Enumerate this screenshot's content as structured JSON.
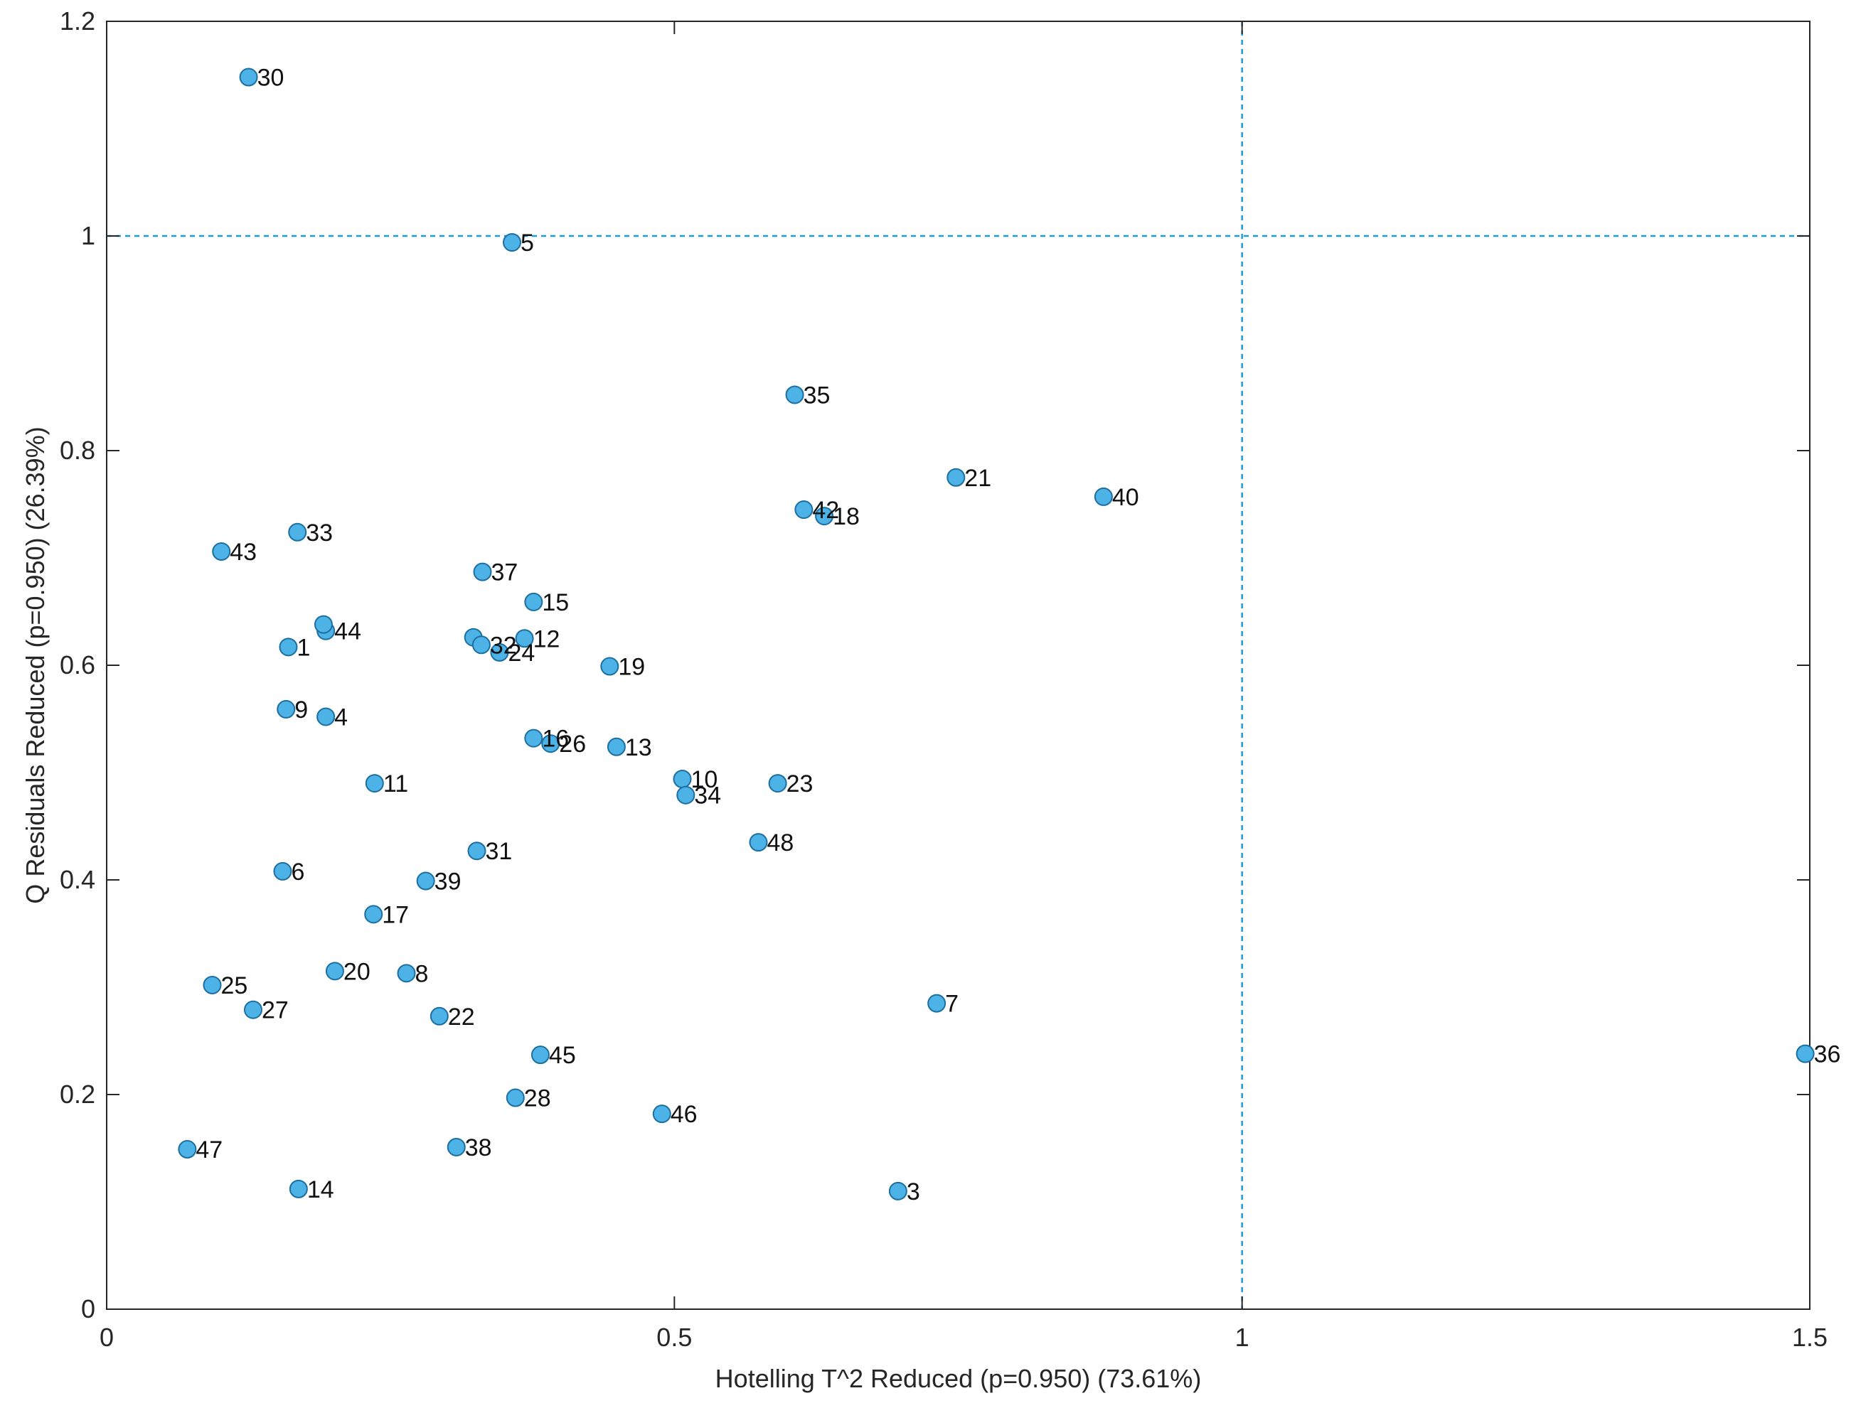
{
  "chart_data": {
    "type": "scatter",
    "xlabel": "Hotelling T^2 Reduced (p=0.950) (73.61%)",
    "ylabel": "Q Residuals Reduced (p=0.950) (26.39%)",
    "xlim": [
      0,
      1.5
    ],
    "ylim": [
      0,
      1.2
    ],
    "x_ticks": [
      0,
      0.5,
      1,
      1.5
    ],
    "x_tick_labels": [
      "0",
      "0.5",
      "1",
      "1.5"
    ],
    "y_ticks": [
      0,
      0.2,
      0.4,
      0.6,
      0.8,
      1,
      1.2
    ],
    "y_tick_labels": [
      "0",
      "0.2",
      "0.4",
      "0.6",
      "0.8",
      "1",
      "1.2"
    ],
    "grid": false,
    "threshold_lines": {
      "x": 1,
      "y": 1
    },
    "colors": {
      "marker_fill": "#4DB3E6",
      "marker_edge": "#1C6FA0",
      "threshold": "#1E9BD7",
      "axes": "#262626"
    },
    "points": [
      {
        "label": "30",
        "x": 0.125,
        "y": 1.148
      },
      {
        "label": "5",
        "x": 0.357,
        "y": 0.994
      },
      {
        "label": "35",
        "x": 0.606,
        "y": 0.852
      },
      {
        "label": "21",
        "x": 0.748,
        "y": 0.775
      },
      {
        "label": "40",
        "x": 0.878,
        "y": 0.757
      },
      {
        "label": "42",
        "x": 0.614,
        "y": 0.745
      },
      {
        "label": "18",
        "x": 0.632,
        "y": 0.739
      },
      {
        "label": "33",
        "x": 0.168,
        "y": 0.724
      },
      {
        "label": "43",
        "x": 0.101,
        "y": 0.706
      },
      {
        "label": "37",
        "x": 0.331,
        "y": 0.687
      },
      {
        "label": "15",
        "x": 0.376,
        "y": 0.659
      },
      {
        "label": "44",
        "x": 0.193,
        "y": 0.632
      },
      {
        "label": "",
        "x": 0.191,
        "y": 0.638
      },
      {
        "label": "",
        "x": 0.323,
        "y": 0.626
      },
      {
        "label": "32",
        "x": 0.33,
        "y": 0.619
      },
      {
        "label": "12",
        "x": 0.368,
        "y": 0.625
      },
      {
        "label": "24",
        "x": 0.346,
        "y": 0.612
      },
      {
        "label": "1",
        "x": 0.16,
        "y": 0.617
      },
      {
        "label": "19",
        "x": 0.443,
        "y": 0.599
      },
      {
        "label": "9",
        "x": 0.158,
        "y": 0.559
      },
      {
        "label": "4",
        "x": 0.193,
        "y": 0.552
      },
      {
        "label": "16",
        "x": 0.376,
        "y": 0.532
      },
      {
        "label": "26",
        "x": 0.391,
        "y": 0.527
      },
      {
        "label": "13",
        "x": 0.449,
        "y": 0.524
      },
      {
        "label": "11",
        "x": 0.236,
        "y": 0.49
      },
      {
        "label": "10",
        "x": 0.507,
        "y": 0.494
      },
      {
        "label": "23",
        "x": 0.591,
        "y": 0.49
      },
      {
        "label": "34",
        "x": 0.51,
        "y": 0.479
      },
      {
        "label": "48",
        "x": 0.574,
        "y": 0.435
      },
      {
        "label": "31",
        "x": 0.326,
        "y": 0.427
      },
      {
        "label": "6",
        "x": 0.155,
        "y": 0.408
      },
      {
        "label": "39",
        "x": 0.281,
        "y": 0.399
      },
      {
        "label": "17",
        "x": 0.235,
        "y": 0.368
      },
      {
        "label": "20",
        "x": 0.201,
        "y": 0.315
      },
      {
        "label": "8",
        "x": 0.264,
        "y": 0.313
      },
      {
        "label": "25",
        "x": 0.093,
        "y": 0.302
      },
      {
        "label": "7",
        "x": 0.731,
        "y": 0.285
      },
      {
        "label": "27",
        "x": 0.129,
        "y": 0.279
      },
      {
        "label": "22",
        "x": 0.293,
        "y": 0.273
      },
      {
        "label": "36",
        "x": 1.496,
        "y": 0.238
      },
      {
        "label": "45",
        "x": 0.382,
        "y": 0.237
      },
      {
        "label": "28",
        "x": 0.36,
        "y": 0.197
      },
      {
        "label": "46",
        "x": 0.489,
        "y": 0.182
      },
      {
        "label": "47",
        "x": 0.071,
        "y": 0.149
      },
      {
        "label": "38",
        "x": 0.308,
        "y": 0.151
      },
      {
        "label": "14",
        "x": 0.169,
        "y": 0.112
      },
      {
        "label": "3",
        "x": 0.697,
        "y": 0.11
      }
    ]
  }
}
